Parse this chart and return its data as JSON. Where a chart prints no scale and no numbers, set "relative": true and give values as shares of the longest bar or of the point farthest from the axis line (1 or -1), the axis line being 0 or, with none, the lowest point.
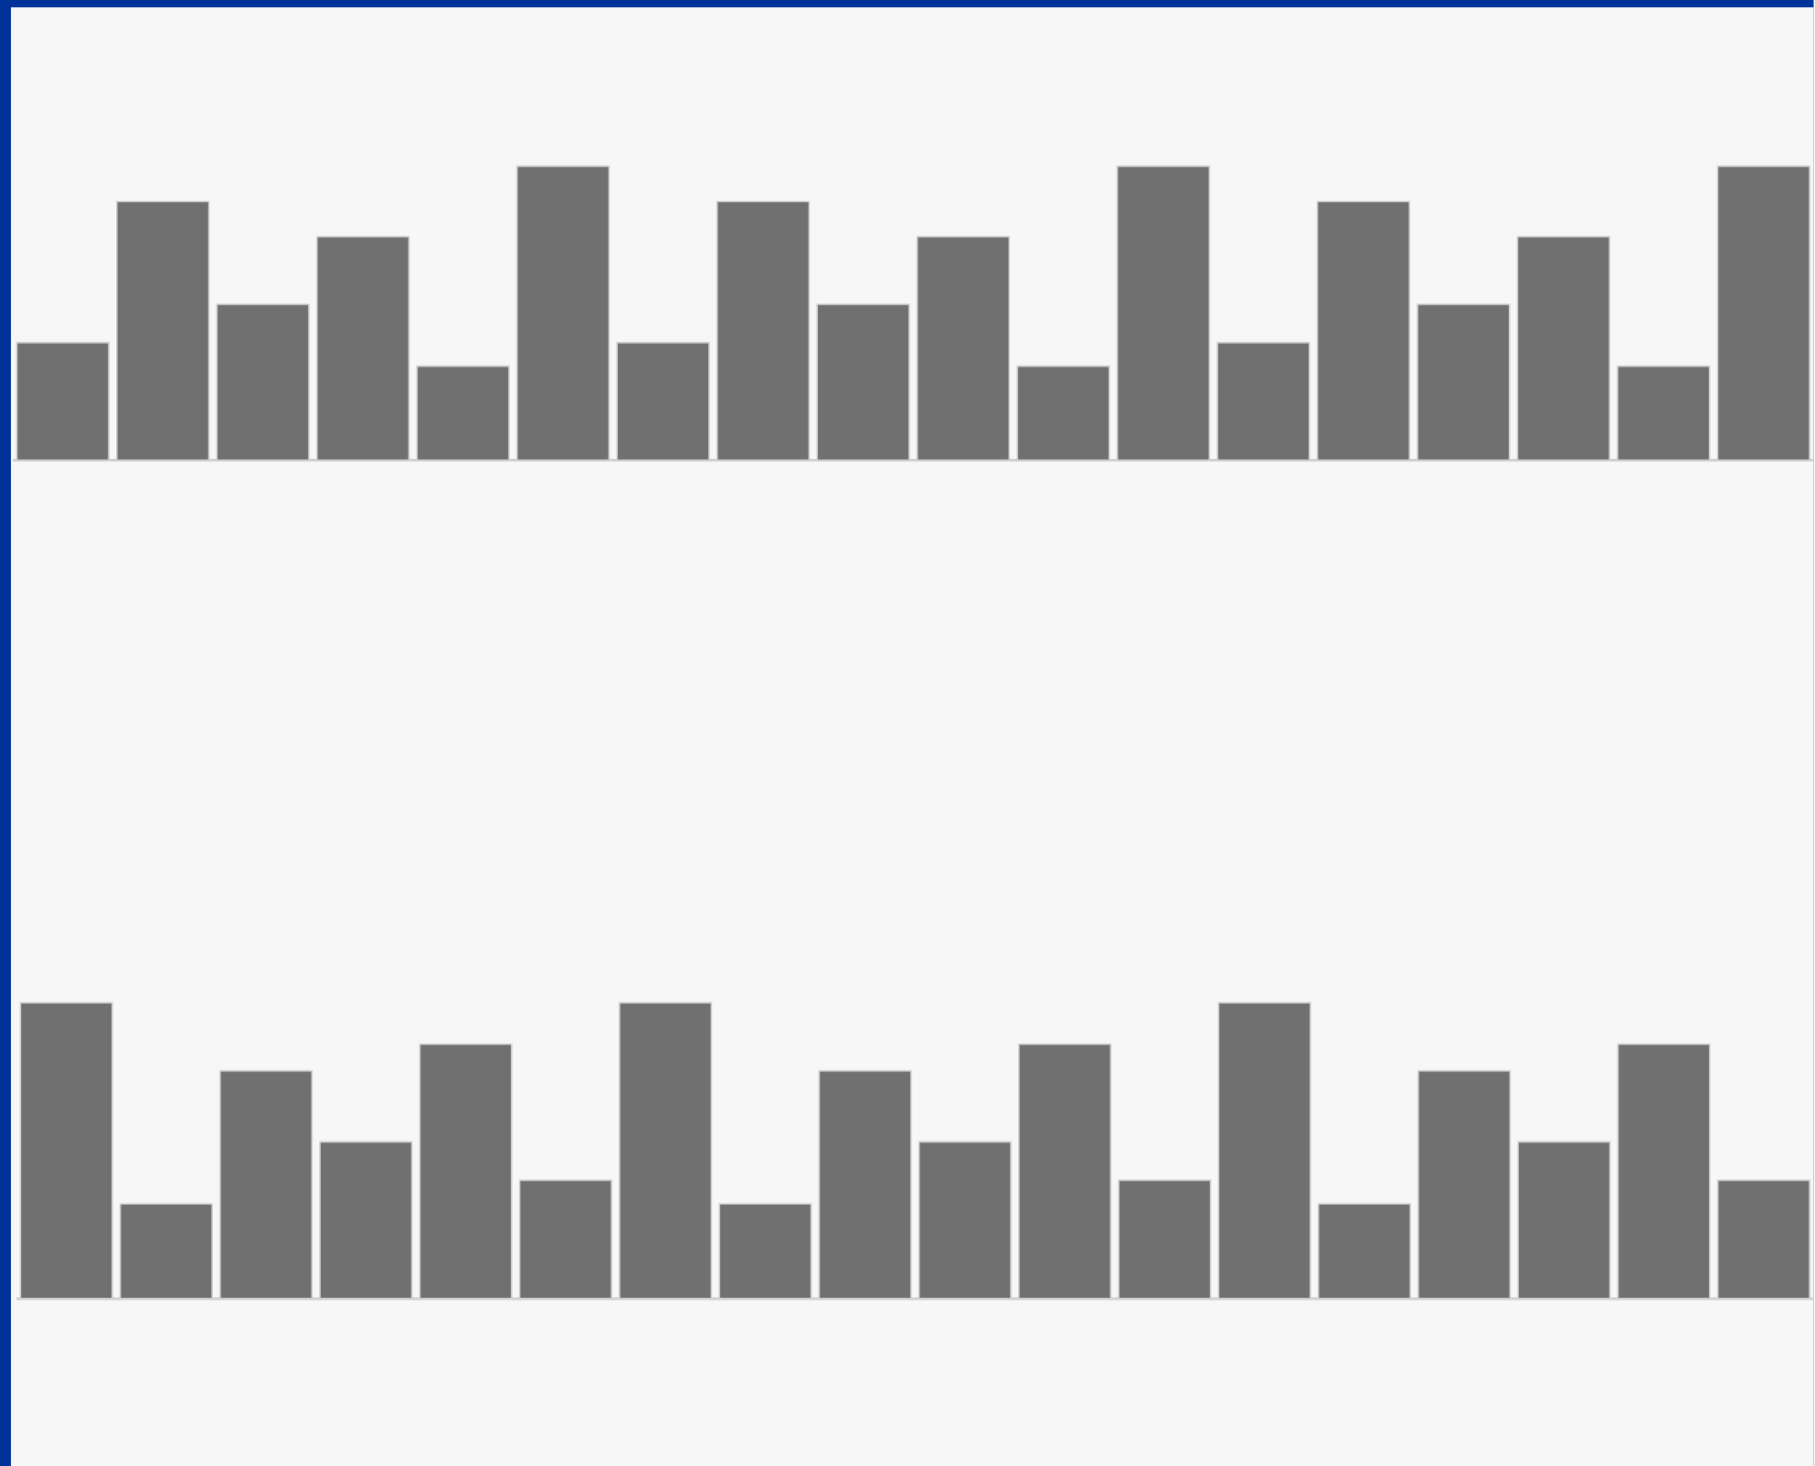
{
  "chart_data": [
    {
      "type": "bar",
      "relative": true,
      "color": "#707070",
      "categories": [
        null,
        null,
        null,
        null,
        null,
        null,
        null,
        null,
        null,
        null,
        null,
        null,
        null,
        null,
        null,
        null,
        null,
        null
      ],
      "values": [
        0.4,
        0.88,
        0.53,
        0.76,
        0.32,
        1,
        0.4,
        0.88,
        0.53,
        0.76,
        0.32,
        1,
        0.4,
        0.88,
        0.53,
        0.76,
        0.32,
        1
      ]
    },
    {
      "type": "bar",
      "relative": true,
      "color": "#707070",
      "categories": [
        null,
        null,
        null,
        null,
        null,
        null,
        null,
        null,
        null,
        null,
        null,
        null,
        null,
        null,
        null,
        null,
        null,
        null
      ],
      "values": [
        1,
        0.32,
        0.77,
        0.53,
        0.86,
        0.4,
        1,
        0.32,
        0.77,
        0.53,
        0.86,
        0.4,
        1,
        0.32,
        0.77,
        0.53,
        0.86,
        0.4
      ]
    }
  ]
}
